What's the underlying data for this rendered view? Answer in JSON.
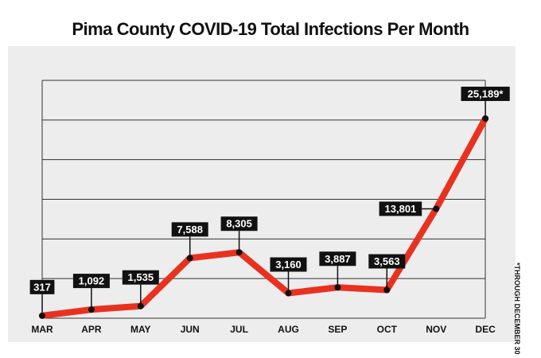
{
  "chart_data": {
    "type": "line",
    "title": "Pima County COVID-19 Total Infections Per Month",
    "categories": [
      "MAR",
      "APR",
      "MAY",
      "JUN",
      "JUL",
      "AUG",
      "SEP",
      "OCT",
      "NOV",
      "DEC"
    ],
    "values": [
      317,
      1092,
      1535,
      7588,
      8305,
      3160,
      3887,
      3563,
      13801,
      25189
    ],
    "data_labels": [
      "317",
      "1,092",
      "1,535",
      "7,588",
      "8,305",
      "3,160",
      "3,887",
      "3,563",
      "13,801",
      "25,189*"
    ],
    "ylim": [
      0,
      30000
    ],
    "grid": true,
    "footnote": "*THROUGH DECEMBER 30",
    "colors": {
      "line": "#e8321f",
      "marker": "#111111",
      "label_bg": "#111111",
      "panel": "#ededed",
      "grid": "#333333"
    }
  }
}
